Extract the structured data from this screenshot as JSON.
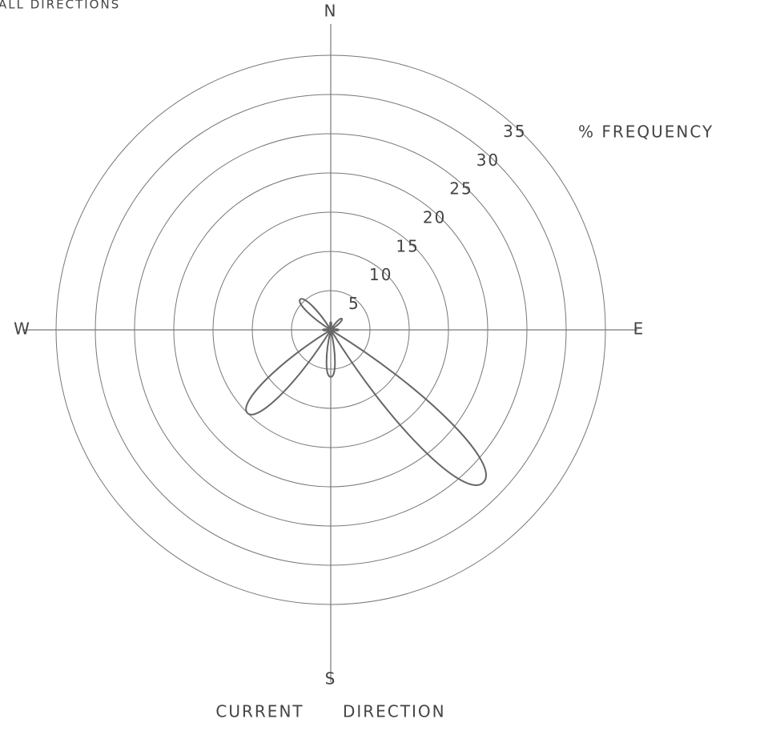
{
  "chart_data": {
    "type": "polar",
    "title": "ALL DIRECTIONS",
    "subtitle": "% FREQUENCY",
    "xlabel": "CURRENT DIRECTION",
    "categories": [
      "N",
      null,
      "E",
      null,
      "S",
      null,
      "W",
      null
    ],
    "values": [
      1,
      2,
      1,
      27.5,
      6,
      15,
      1,
      5.5
    ],
    "rlim": [
      0,
      35
    ],
    "rticks": [
      5,
      10,
      15,
      20,
      25,
      30,
      35
    ],
    "color": "#666666",
    "grid": true
  }
}
